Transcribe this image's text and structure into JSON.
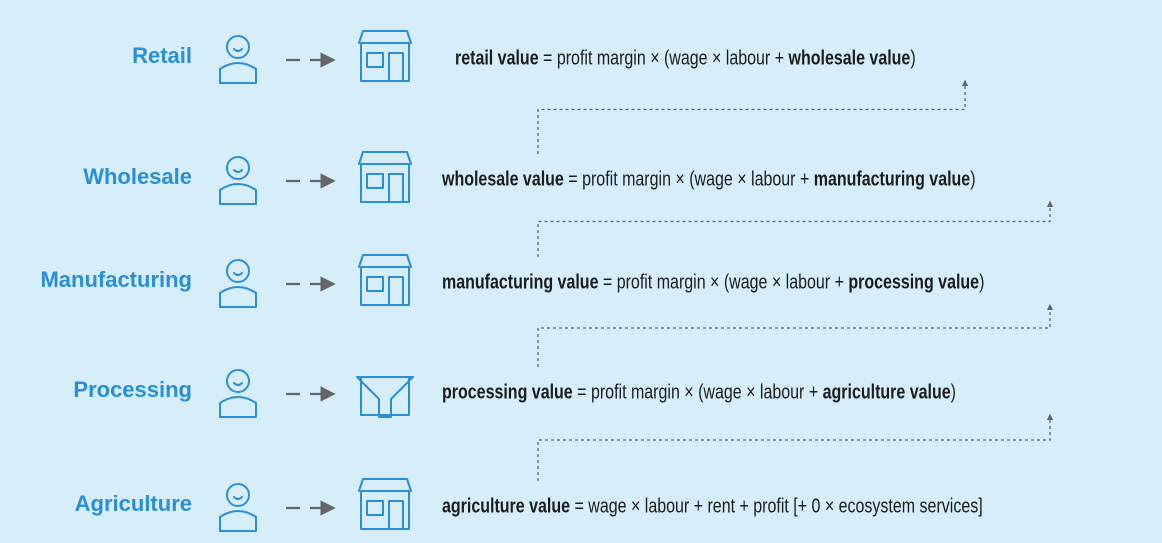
{
  "rows": [
    {
      "label": "Retail",
      "equation": [
        {
          "text": "retail value",
          "bold": true
        },
        {
          "text": " = profit margin × (wage × labour + ",
          "bold": false
        },
        {
          "text": "wholesale value",
          "bold": true
        },
        {
          "text": ")",
          "bold": false
        }
      ]
    },
    {
      "label": "Wholesale",
      "equation": [
        {
          "text": "wholesale value",
          "bold": true
        },
        {
          "text": " = profit margin × (wage × labour + ",
          "bold": false
        },
        {
          "text": "manufacturing value",
          "bold": true
        },
        {
          "text": ")",
          "bold": false
        }
      ]
    },
    {
      "label": "Manufacturing",
      "equation": [
        {
          "text": "manufacturing value",
          "bold": true
        },
        {
          "text": " = profit margin × (wage × labour + ",
          "bold": false
        },
        {
          "text": "processing value",
          "bold": true
        },
        {
          "text": ")",
          "bold": false
        }
      ]
    },
    {
      "label": "Processing",
      "equation": [
        {
          "text": "processing value",
          "bold": true
        },
        {
          "text": " = profit margin × (wage × labour + ",
          "bold": false
        },
        {
          "text": "agriculture value",
          "bold": true
        },
        {
          "text": ")",
          "bold": false
        }
      ]
    },
    {
      "label": "Agriculture",
      "equation": [
        {
          "text": "agriculture value",
          "bold": true
        },
        {
          "text": " = wage × labour + rent + profit [+ 0 × ecosystem services]",
          "bold": false
        }
      ]
    }
  ]
}
